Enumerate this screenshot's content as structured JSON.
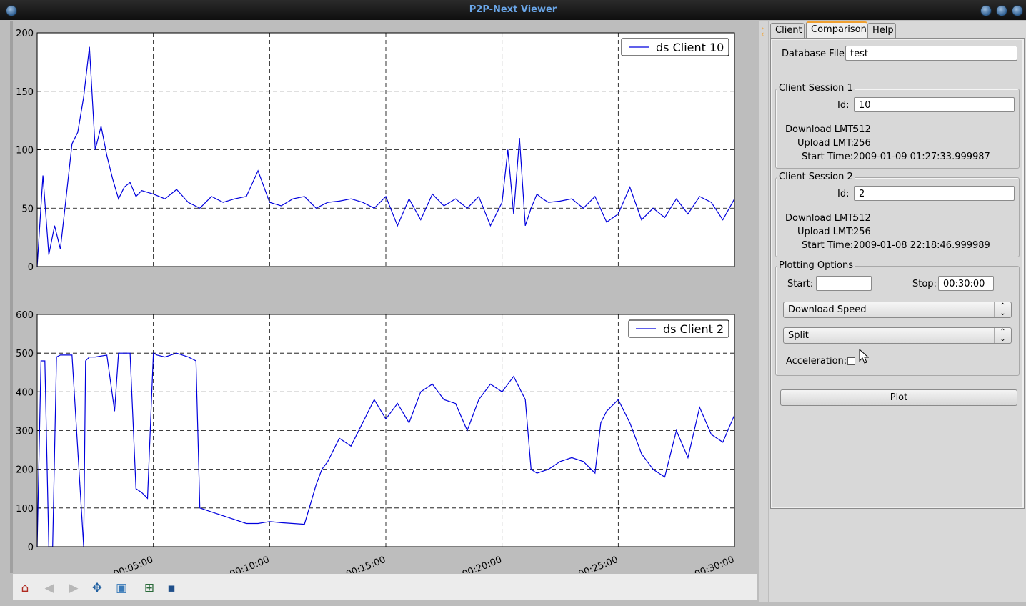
{
  "window": {
    "title": "P2P-Next Viewer"
  },
  "tabs": [
    {
      "label": "Client"
    },
    {
      "label": "Comparison",
      "active": true
    },
    {
      "label": "Help"
    }
  ],
  "form": {
    "database_file_label": "Database File:",
    "database_file_value": "test",
    "session1": {
      "title": "Client Session 1",
      "id_label": "Id:",
      "id_value": "10",
      "download_lmt_label": "Download LMT:",
      "download_lmt_value": "512",
      "upload_lmt_label": "Upload LMT:",
      "upload_lmt_value": "256",
      "start_time_label": "Start Time:",
      "start_time_value": "2009-01-09 01:27:33.999987"
    },
    "session2": {
      "title": "Client Session 2",
      "id_label": "Id:",
      "id_value": "2",
      "download_lmt_label": "Download LMT:",
      "download_lmt_value": "512",
      "upload_lmt_label": "Upload LMT:",
      "upload_lmt_value": "256",
      "start_time_label": "Start Time:",
      "start_time_value": "2009-01-08 22:18:46.999989"
    },
    "plotting": {
      "title": "Plotting Options",
      "start_label": "Start:",
      "start_value": "",
      "stop_label": "Stop:",
      "stop_value": "00:30:00",
      "metric_selected": "Download Speed",
      "mode_selected": "Split",
      "acceleration_label": "Acceleration:",
      "acceleration_checked": false
    },
    "plot_button": "Plot"
  },
  "toolbar_icons": [
    "home-icon",
    "back-icon",
    "forward-icon",
    "pan-icon",
    "zoom-icon",
    "subplots-icon",
    "save-icon"
  ],
  "colors": {
    "series": "#0000dd",
    "accent": "#f0a030"
  },
  "chart_data": [
    {
      "type": "line",
      "ylim": [
        0,
        200
      ],
      "yticks": [
        0,
        50,
        100,
        150,
        200
      ],
      "xlim": [
        "00:00:00",
        "00:30:00"
      ],
      "series": [
        {
          "name": "ds Client 10",
          "x": [
            "00:00:00",
            "00:00:15",
            "00:00:30",
            "00:00:45",
            "00:01:00",
            "00:01:15",
            "00:01:30",
            "00:01:45",
            "00:02:00",
            "00:02:15",
            "00:02:30",
            "00:02:45",
            "00:03:00",
            "00:03:15",
            "00:03:30",
            "00:03:45",
            "00:04:00",
            "00:04:15",
            "00:04:30",
            "00:05:00",
            "00:05:30",
            "00:06:00",
            "00:06:30",
            "00:07:00",
            "00:07:30",
            "00:08:00",
            "00:08:30",
            "00:09:00",
            "00:09:30",
            "00:10:00",
            "00:10:30",
            "00:11:00",
            "00:11:30",
            "00:12:00",
            "00:12:30",
            "00:13:00",
            "00:13:30",
            "00:14:00",
            "00:14:30",
            "00:15:00",
            "00:15:30",
            "00:16:00",
            "00:16:30",
            "00:17:00",
            "00:17:30",
            "00:18:00",
            "00:18:30",
            "00:19:00",
            "00:19:30",
            "00:20:00",
            "00:20:15",
            "00:20:30",
            "00:20:45",
            "00:21:00",
            "00:21:15",
            "00:21:30",
            "00:21:45",
            "00:22:00",
            "00:22:30",
            "00:23:00",
            "00:23:30",
            "00:24:00",
            "00:24:30",
            "00:25:00",
            "00:25:30",
            "00:26:00",
            "00:26:30",
            "00:27:00",
            "00:27:30",
            "00:28:00",
            "00:28:30",
            "00:29:00",
            "00:29:30",
            "00:30:00"
          ],
          "values": [
            0,
            78,
            10,
            35,
            15,
            60,
            105,
            115,
            145,
            188,
            100,
            120,
            95,
            75,
            58,
            68,
            72,
            60,
            65,
            62,
            58,
            66,
            55,
            50,
            60,
            55,
            58,
            60,
            82,
            55,
            52,
            58,
            60,
            50,
            55,
            56,
            58,
            55,
            50,
            60,
            35,
            58,
            40,
            62,
            52,
            58,
            50,
            60,
            35,
            55,
            100,
            45,
            110,
            35,
            50,
            62,
            58,
            55,
            56,
            58,
            50,
            60,
            38,
            45,
            68,
            40,
            50,
            42,
            58,
            45,
            60,
            55,
            40,
            58
          ]
        }
      ]
    },
    {
      "type": "line",
      "ylim": [
        0,
        600
      ],
      "yticks": [
        0,
        100,
        200,
        300,
        400,
        500,
        600
      ],
      "xticks": [
        "00:05:00",
        "00:10:00",
        "00:15:00",
        "00:20:00",
        "00:25:00",
        "00:30:00"
      ],
      "xlim": [
        "00:00:00",
        "00:30:00"
      ],
      "series": [
        {
          "name": "ds Client 2",
          "x": [
            "00:00:00",
            "00:00:10",
            "00:00:20",
            "00:00:30",
            "00:00:40",
            "00:00:50",
            "00:01:00",
            "00:01:30",
            "00:02:00",
            "00:02:05",
            "00:02:15",
            "00:02:30",
            "00:03:00",
            "00:03:20",
            "00:03:30",
            "00:03:40",
            "00:04:00",
            "00:04:15",
            "00:04:30",
            "00:04:45",
            "00:05:00",
            "00:05:10",
            "00:05:30",
            "00:06:00",
            "00:06:30",
            "00:06:50",
            "00:07:00",
            "00:07:30",
            "00:08:00",
            "00:08:30",
            "00:09:00",
            "00:09:30",
            "00:10:00",
            "00:10:30",
            "00:11:00",
            "00:11:30",
            "00:12:00",
            "00:12:15",
            "00:12:30",
            "00:13:00",
            "00:13:30",
            "00:14:00",
            "00:14:30",
            "00:15:00",
            "00:15:30",
            "00:16:00",
            "00:16:30",
            "00:17:00",
            "00:17:30",
            "00:18:00",
            "00:18:30",
            "00:19:00",
            "00:19:30",
            "00:20:00",
            "00:20:30",
            "00:21:00",
            "00:21:15",
            "00:21:30",
            "00:22:00",
            "00:22:30",
            "00:23:00",
            "00:23:30",
            "00:24:00",
            "00:24:15",
            "00:24:30",
            "00:25:00",
            "00:25:30",
            "00:26:00",
            "00:26:30",
            "00:27:00",
            "00:27:30",
            "00:28:00",
            "00:28:30",
            "00:29:00",
            "00:29:30",
            "00:30:00"
          ],
          "values": [
            0,
            480,
            480,
            0,
            0,
            490,
            495,
            495,
            0,
            480,
            490,
            490,
            495,
            350,
            500,
            500,
            500,
            150,
            140,
            125,
            500,
            495,
            490,
            500,
            490,
            480,
            100,
            90,
            80,
            70,
            60,
            60,
            65,
            62,
            60,
            58,
            160,
            200,
            220,
            280,
            260,
            320,
            380,
            330,
            370,
            320,
            400,
            420,
            380,
            370,
            300,
            380,
            420,
            400,
            440,
            380,
            200,
            190,
            200,
            220,
            230,
            220,
            190,
            320,
            350,
            380,
            320,
            240,
            200,
            180,
            300,
            230,
            360,
            290,
            270,
            340
          ]
        }
      ]
    }
  ]
}
